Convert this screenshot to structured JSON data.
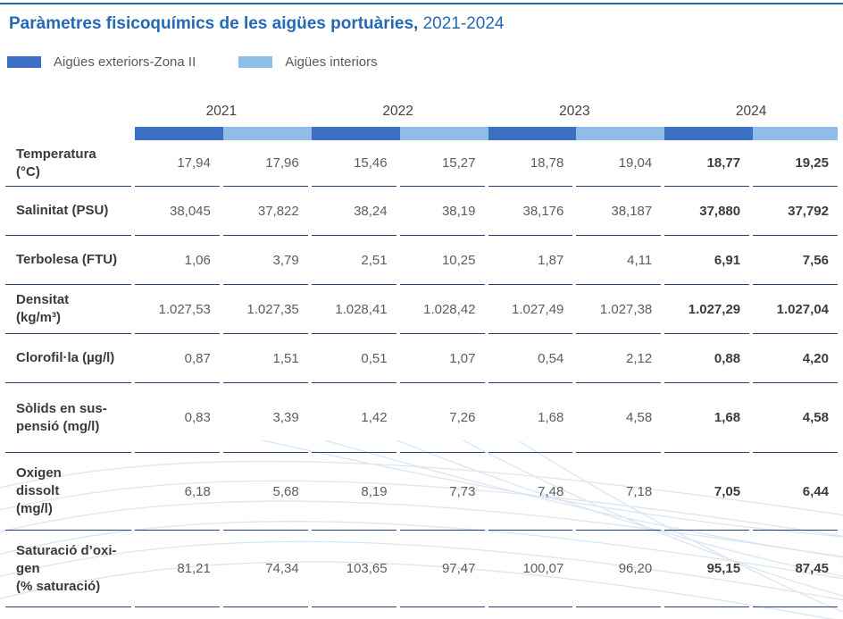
{
  "title": {
    "main": "Paràmetres fisicoquímics de les aigües portuàries,",
    "period": "2021-2024"
  },
  "legend": [
    {
      "label": "Aigües exteriors-Zona II",
      "series": "exterior"
    },
    {
      "label": "Aigües interiors",
      "series": "interior"
    }
  ],
  "colors": {
    "brand_blue": "#2568b4",
    "exterior": "#3b70c5",
    "interior": "#8fbde8",
    "divider": "#26406f",
    "wave": "#dce5f2"
  },
  "table": {
    "years": [
      "2021",
      "2022",
      "2023",
      "2024"
    ],
    "subcolumns_per_year": [
      "exterior",
      "interior"
    ],
    "bold_year": "2024",
    "rows": [
      {
        "label_lines": [
          "Temperatura",
          "(°C)"
        ],
        "values": [
          "17,94",
          "17,96",
          "15,46",
          "15,27",
          "18,78",
          "19,04",
          "18,77",
          "19,25"
        ]
      },
      {
        "label_lines": [
          "Salinitat (PSU)"
        ],
        "values": [
          "38,045",
          "37,822",
          "38,24",
          "38,19",
          "38,176",
          "38,187",
          "37,880",
          "37,792"
        ]
      },
      {
        "label_lines": [
          "Terbolesa (FTU)"
        ],
        "values": [
          "1,06",
          "3,79",
          "2,51",
          "10,25",
          "1,87",
          "4,11",
          "6,91",
          "7,56"
        ]
      },
      {
        "label_lines": [
          "Densitat",
          "(kg/m³)"
        ],
        "values": [
          "1.027,53",
          "1.027,35",
          "1.028,41",
          "1.028,42",
          "1.027,49",
          "1.027,38",
          "1.027,29",
          "1.027,04"
        ]
      },
      {
        "label_lines": [
          "Clorofil·la (µg/l)"
        ],
        "values": [
          "0,87",
          "1,51",
          "0,51",
          "1,07",
          "0,54",
          "2,12",
          "0,88",
          "4,20"
        ]
      },
      {
        "label_lines": [
          "Sòlids en sus-",
          "pensió (mg/l)"
        ],
        "values": [
          "0,83",
          "3,39",
          "1,42",
          "7,26",
          "1,68",
          "4,58",
          "1,68",
          "4,58"
        ]
      },
      {
        "label_lines": [
          "Oxigen",
          "dissolt",
          "(mg/l)"
        ],
        "values": [
          "6,18",
          "5,68",
          "8,19",
          "7,73",
          "7,48",
          "7,18",
          "7,05",
          "6,44"
        ]
      },
      {
        "label_lines": [
          "Saturació d’oxi-",
          "gen",
          "(% saturació)"
        ],
        "values": [
          "81,21",
          "74,34",
          "103,65",
          "97,47",
          "100,07",
          "96,20",
          "95,15",
          "87,45"
        ]
      }
    ]
  },
  "chart_data": {
    "type": "table",
    "title": "Paràmetres fisicoquímics de les aigües portuàries, 2021-2024",
    "column_groups": [
      "2021",
      "2022",
      "2023",
      "2024"
    ],
    "subcolumns": [
      "Aigües exteriors-Zona II",
      "Aigües interiors"
    ],
    "rows": [
      {
        "parameter": "Temperatura (°C)",
        "values": [
          17.94,
          17.96,
          15.46,
          15.27,
          18.78,
          19.04,
          18.77,
          19.25
        ]
      },
      {
        "parameter": "Salinitat (PSU)",
        "values": [
          38.045,
          37.822,
          38.24,
          38.19,
          38.176,
          38.187,
          37.88,
          37.792
        ]
      },
      {
        "parameter": "Terbolesa (FTU)",
        "values": [
          1.06,
          3.79,
          2.51,
          10.25,
          1.87,
          4.11,
          6.91,
          7.56
        ]
      },
      {
        "parameter": "Densitat (kg/m³)",
        "values": [
          1027.53,
          1027.35,
          1028.41,
          1028.42,
          1027.49,
          1027.38,
          1027.29,
          1027.04
        ]
      },
      {
        "parameter": "Clorofil·la (µg/l)",
        "values": [
          0.87,
          1.51,
          0.51,
          1.07,
          0.54,
          2.12,
          0.88,
          4.2
        ]
      },
      {
        "parameter": "Sòlids en suspensió (mg/l)",
        "values": [
          0.83,
          3.39,
          1.42,
          7.26,
          1.68,
          4.58,
          1.68,
          4.58
        ]
      },
      {
        "parameter": "Oxigen dissolt (mg/l)",
        "values": [
          6.18,
          5.68,
          8.19,
          7.73,
          7.48,
          7.18,
          7.05,
          6.44
        ]
      },
      {
        "parameter": "Saturació d’oxigen (% saturació)",
        "values": [
          81.21,
          74.34,
          103.65,
          97.47,
          100.07,
          96.2,
          95.15,
          87.45
        ]
      }
    ]
  }
}
